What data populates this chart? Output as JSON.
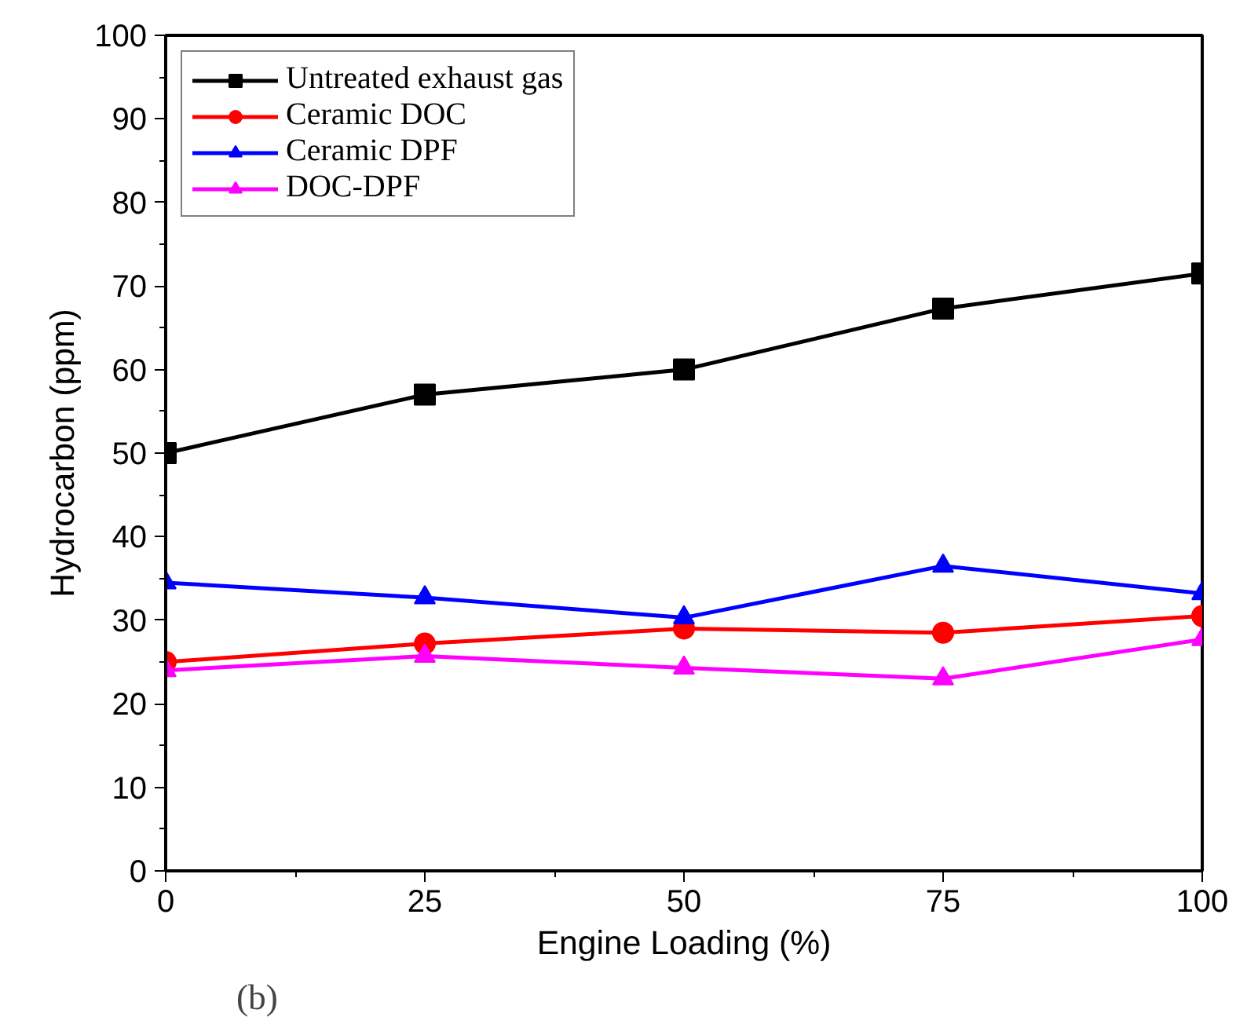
{
  "chart_data": {
    "type": "line",
    "xlabel": "Engine Loading (%)",
    "ylabel": "Hydrocarbon (ppm)",
    "x": [
      0,
      25,
      50,
      75,
      100
    ],
    "xlim": [
      0,
      100
    ],
    "xticks": [
      0,
      25,
      50,
      75,
      100
    ],
    "ylim": [
      0,
      100
    ],
    "yticks": [
      0,
      10,
      20,
      30,
      40,
      50,
      60,
      70,
      80,
      90,
      100
    ],
    "grid": false,
    "legend": "top left",
    "line_style": "solid",
    "annotations": [
      "(b)"
    ],
    "series": [
      {
        "name": "Untreated exhaust gas",
        "color": "#000000",
        "marker": "square",
        "values": [
          50,
          57,
          60,
          67.3,
          71.5
        ]
      },
      {
        "name": "Ceramic DOC",
        "color": "#ff0000",
        "marker": "circle",
        "values": [
          25,
          27.2,
          29,
          28.5,
          30.5
        ]
      },
      {
        "name": "Ceramic DPF",
        "color": "#0000ff",
        "marker": "triangle",
        "values": [
          34.5,
          32.7,
          30.3,
          36.5,
          33.2
        ]
      },
      {
        "name": "DOC-DPF",
        "color": "#ff00ff",
        "marker": "triangle",
        "values": [
          24,
          25.7,
          24.3,
          23,
          27.7
        ]
      }
    ]
  }
}
